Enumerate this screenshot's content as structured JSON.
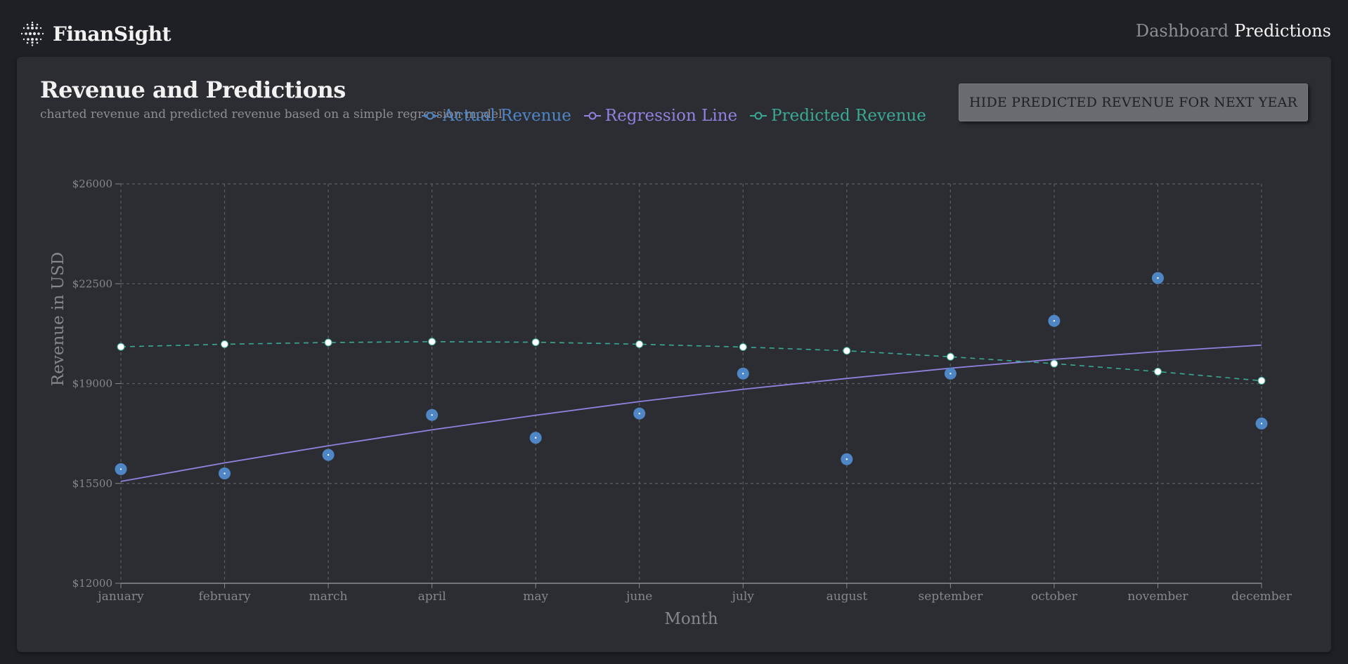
{
  "header": {
    "brand": "FinanSight",
    "nav": [
      "Dashboard",
      "Predictions"
    ]
  },
  "page": {
    "title": "Revenue and Predictions",
    "subtitle": "charted revenue and predicted revenue based on a simple regression model",
    "toggle_label": "HIDE PREDICTED REVENUE FOR NEXT YEAR"
  },
  "colors": {
    "actual": "#4f86c6",
    "regression": "#9182e0",
    "predicted": "#3aa994",
    "grid": "#5b5c61",
    "axis_text": "#86878c"
  },
  "chart_data": {
    "type": "line",
    "categories": [
      "january",
      "february",
      "march",
      "april",
      "may",
      "june",
      "july",
      "august",
      "september",
      "october",
      "november",
      "december"
    ],
    "series": [
      {
        "name": "Actual Revenue",
        "style": "markers",
        "values": [
          16000,
          15850,
          16500,
          17900,
          17100,
          17950,
          19350,
          16350,
          19350,
          21200,
          22700,
          17600
        ]
      },
      {
        "name": "Regression Line",
        "style": "line",
        "values": [
          15570,
          16220,
          16820,
          17380,
          17890,
          18370,
          18800,
          19180,
          19540,
          19850,
          20120,
          20350
        ]
      },
      {
        "name": "Predicted Revenue",
        "style": "dashed-markers",
        "values": [
          20290,
          20380,
          20440,
          20470,
          20450,
          20380,
          20280,
          20150,
          19940,
          19700,
          19420,
          19100
        ]
      }
    ],
    "xlabel": "Month",
    "ylabel": "Revenue in USD",
    "ylim": [
      12000,
      26000
    ],
    "yticks": [
      12000,
      15500,
      19000,
      22500,
      26000
    ],
    "ytick_labels": [
      "$12000",
      "$15500",
      "$19000",
      "$22500",
      "$26000"
    ],
    "grid": true,
    "legend_position": "top-center"
  }
}
